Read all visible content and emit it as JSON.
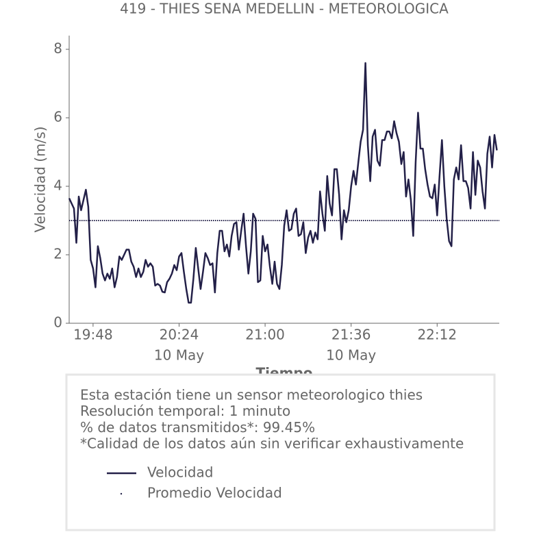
{
  "chart_data": {
    "type": "line",
    "title": "419 - THIES SENA MEDELLIN - METEOROLOGICA",
    "y_label": "Velocidad (m/s)",
    "x_label": "Tiempo",
    "x": [
      "19:38",
      "19:40",
      "19:41",
      "19:42",
      "19:43",
      "19:45",
      "19:46",
      "19:47",
      "19:48",
      "19:49",
      "19:50",
      "19:51",
      "19:52",
      "19:53",
      "19:54",
      "19:55",
      "19:56",
      "19:57",
      "19:58",
      "19:59",
      "20:00",
      "20:02",
      "20:03",
      "20:04",
      "20:05",
      "20:06",
      "20:07",
      "20:08",
      "20:09",
      "20:10",
      "20:11",
      "20:12",
      "20:13",
      "20:14",
      "20:15",
      "20:16",
      "20:17",
      "20:18",
      "20:19",
      "20:20",
      "20:21",
      "20:22",
      "20:23",
      "20:24",
      "20:25",
      "20:26",
      "20:27",
      "20:28",
      "20:29",
      "20:30",
      "20:31",
      "20:32",
      "20:33",
      "20:34",
      "20:35",
      "20:36",
      "20:37",
      "20:38",
      "20:39",
      "20:40",
      "20:41",
      "20:42",
      "20:43",
      "20:44",
      "20:45",
      "20:46",
      "20:47",
      "20:48",
      "20:49",
      "20:50",
      "20:51",
      "20:52",
      "20:53",
      "20:54",
      "20:55",
      "20:56",
      "20:57",
      "20:58",
      "20:59",
      "21:00",
      "21:01",
      "21:02",
      "21:03",
      "21:04",
      "21:05",
      "21:06",
      "21:07",
      "21:08",
      "21:09",
      "21:10",
      "21:11",
      "21:12",
      "21:13",
      "21:14",
      "21:15",
      "21:16",
      "21:17",
      "21:18",
      "21:19",
      "21:20",
      "21:21",
      "21:22",
      "21:23",
      "21:24",
      "21:25",
      "21:26",
      "21:27",
      "21:28",
      "21:29",
      "21:30",
      "21:31",
      "21:32",
      "21:33",
      "21:34",
      "21:35",
      "21:36",
      "21:37",
      "21:38",
      "21:39",
      "21:40",
      "21:41",
      "21:42",
      "21:43",
      "21:44",
      "21:45",
      "21:46",
      "21:47",
      "21:48",
      "21:49",
      "21:50",
      "21:51",
      "21:52",
      "21:53",
      "21:54",
      "21:55",
      "21:56",
      "21:57",
      "21:58",
      "21:59",
      "22:00",
      "22:01",
      "22:02",
      "22:03",
      "22:04",
      "22:05",
      "22:06",
      "22:07",
      "22:08",
      "22:09",
      "22:10",
      "22:11",
      "22:12",
      "22:13",
      "22:14",
      "22:15",
      "22:16",
      "22:17",
      "22:18",
      "22:19",
      "22:20",
      "22:21",
      "22:22",
      "22:23",
      "22:24",
      "22:25",
      "22:26",
      "22:27",
      "22:28",
      "22:29",
      "22:30",
      "22:31",
      "22:32",
      "22:33",
      "22:34",
      "22:35",
      "22:36",
      "22:37"
    ],
    "series": [
      {
        "name": "Velocidad",
        "color": "#232048",
        "style": "solid",
        "values": [
          3.65,
          3.35,
          2.35,
          3.7,
          3.3,
          3.9,
          3.4,
          1.85,
          1.6,
          1.05,
          2.25,
          1.9,
          1.45,
          1.25,
          1.45,
          1.3,
          1.6,
          1.05,
          1.35,
          1.95,
          1.85,
          2.15,
          2.15,
          1.8,
          1.65,
          1.35,
          1.6,
          1.35,
          1.5,
          1.85,
          1.65,
          1.75,
          1.65,
          1.1,
          1.15,
          1.1,
          0.92,
          0.9,
          1.2,
          1.3,
          1.45,
          1.7,
          1.55,
          1.95,
          2.05,
          1.5,
          1.0,
          0.6,
          0.6,
          1.3,
          2.2,
          1.6,
          1.0,
          1.5,
          2.05,
          1.9,
          1.7,
          1.75,
          0.9,
          2.05,
          2.7,
          2.7,
          2.1,
          2.3,
          1.95,
          2.55,
          2.9,
          2.95,
          2.15,
          2.7,
          3.2,
          2.25,
          1.45,
          2.1,
          3.2,
          3.05,
          1.2,
          1.25,
          2.55,
          2.1,
          2.3,
          1.65,
          1.15,
          1.8,
          1.15,
          1.0,
          1.7,
          2.85,
          3.3,
          2.7,
          2.75,
          3.2,
          3.35,
          2.55,
          2.6,
          2.95,
          2.05,
          2.5,
          2.7,
          2.35,
          2.65,
          2.45,
          3.85,
          3.2,
          2.7,
          4.3,
          3.5,
          3.15,
          4.5,
          4.5,
          3.75,
          2.45,
          3.3,
          2.95,
          3.3,
          4.0,
          4.45,
          4.05,
          4.7,
          5.3,
          5.65,
          7.6,
          5.2,
          4.15,
          5.45,
          5.65,
          4.75,
          4.6,
          5.35,
          5.35,
          5.6,
          5.6,
          5.4,
          5.9,
          5.55,
          5.3,
          4.65,
          5.0,
          3.7,
          4.2,
          3.6,
          2.55,
          4.7,
          6.15,
          5.1,
          5.1,
          4.5,
          4.05,
          3.7,
          3.65,
          4.05,
          3.15,
          4.3,
          5.35,
          4.0,
          3.05,
          2.4,
          2.25,
          4.2,
          4.55,
          4.2,
          5.2,
          4.15,
          4.15,
          3.95,
          3.35,
          5.0,
          3.75,
          4.75,
          4.55,
          3.85,
          3.35,
          4.95,
          5.45,
          4.55,
          5.5,
          5.05
        ]
      },
      {
        "name": "Promedio Velocidad",
        "color": "#232048",
        "style": "dotted",
        "x": [
          "19:38",
          "22:38"
        ],
        "values": [
          3.0,
          3.0
        ]
      }
    ],
    "xlim": [
      "19:38",
      "22:38"
    ],
    "xticks": [
      "19:48",
      "20:24",
      "21:00",
      "21:36",
      "22:12"
    ],
    "xtick_dates": [
      null,
      "10 May",
      null,
      "10 May",
      null
    ],
    "ylim": [
      0,
      8.4
    ],
    "yticks": [
      0,
      2,
      4,
      6,
      8
    ],
    "legend": "bottom",
    "notes": [
      "Esta estación tiene un sensor meteorologico thies",
      "Resolución temporal: 1 minuto",
      "% de datos transmitidos*: 99.45%",
      "*Calidad de los datos aún sin verificar exhaustivamente"
    ]
  }
}
